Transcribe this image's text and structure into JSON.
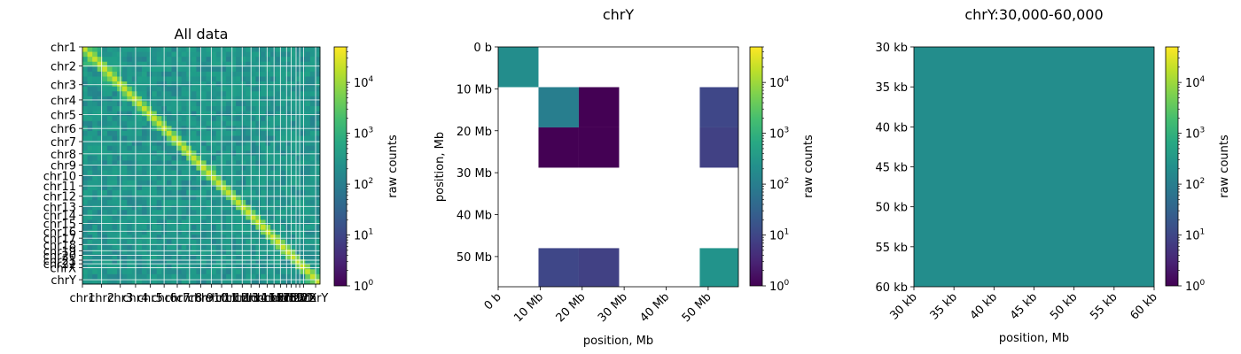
{
  "chart_data": [
    {
      "type": "heatmap",
      "title": "All data",
      "xlabel": "",
      "ylabel": "",
      "y_tick_labels": [
        "chr1",
        "chr2",
        "chr3",
        "chr4",
        "chr5",
        "chr6",
        "chr7",
        "chr8",
        "chr9",
        "chr10",
        "chr11",
        "chr12",
        "chr13",
        "chr14",
        "chr15",
        "chr16",
        "chr17",
        "chr18",
        "chr19",
        "chr20",
        "chr21",
        "chr22",
        "chrX",
        "chrY"
      ],
      "x_tick_labels": [
        "chr1",
        "chr2",
        "chr3",
        "chr4",
        "chr5",
        "chr6",
        "chr7",
        "chr8",
        "chr9",
        "chr10",
        "chr11",
        "chr12",
        "chr13",
        "chr14",
        "chr15",
        "chr16",
        "chr17",
        "chr18",
        "chr19",
        "chr20",
        "chr21",
        "chr22",
        "chrX",
        "chrY"
      ],
      "chromosome_sizes_mb": [
        249,
        243,
        198,
        190,
        181,
        171,
        159,
        145,
        138,
        134,
        135,
        133,
        114,
        107,
        102,
        90,
        83,
        80,
        59,
        64,
        47,
        51,
        156,
        57
      ],
      "colorbar_label": "raw counts",
      "colorbar_scale": "log",
      "colorbar_range": [
        1,
        50000
      ],
      "colorbar_tick_labels": [
        "10^0",
        "10^1",
        "10^2",
        "10^3",
        "10^4"
      ]
    },
    {
      "type": "heatmap",
      "title": "chrY",
      "xlabel": "position, Mb",
      "ylabel": "position, Mb",
      "x_tick_labels": [
        "0 b",
        "10 Mb",
        "20 Mb",
        "30 Mb",
        "40 Mb",
        "50 Mb"
      ],
      "y_tick_labels": [
        "0 b",
        "10 Mb",
        "20 Mb",
        "30 Mb",
        "40 Mb",
        "50 Mb"
      ],
      "bin_size_mb": 9.6,
      "bins": 6,
      "matrix": [
        [
          200,
          null,
          null,
          null,
          null,
          null
        ],
        [
          null,
          100,
          1,
          null,
          null,
          10
        ],
        [
          null,
          1,
          1,
          null,
          null,
          8
        ],
        [
          null,
          null,
          null,
          null,
          null,
          null
        ],
        [
          null,
          null,
          null,
          null,
          null,
          null
        ],
        [
          null,
          10,
          8,
          null,
          null,
          250
        ]
      ],
      "colorbar_label": "raw counts",
      "colorbar_scale": "log",
      "colorbar_range": [
        1,
        50000
      ],
      "colorbar_tick_labels": [
        "10^0",
        "10^1",
        "10^2",
        "10^3",
        "10^4"
      ]
    },
    {
      "type": "heatmap",
      "title": "chrY:30,000-60,000",
      "xlabel": "position, Mb",
      "ylabel": "",
      "x_tick_labels": [
        "30 kb",
        "35 kb",
        "40 kb",
        "45 kb",
        "50 kb",
        "55 kb",
        "60 kb"
      ],
      "y_tick_labels": [
        "30 kb",
        "35 kb",
        "40 kb",
        "45 kb",
        "50 kb",
        "55 kb",
        "60 kb"
      ],
      "matrix": [
        [
          200
        ]
      ],
      "colorbar_label": "raw counts",
      "colorbar_scale": "log",
      "colorbar_range": [
        1,
        50000
      ],
      "colorbar_tick_labels": [
        "10^0",
        "10^1",
        "10^2",
        "10^3",
        "10^4"
      ]
    }
  ]
}
